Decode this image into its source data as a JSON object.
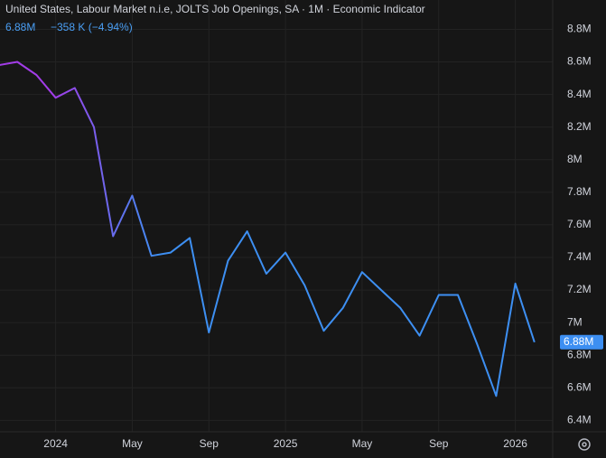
{
  "chart_data": {
    "type": "line",
    "title": "United States, Labour Market n.i.e, JOLTS Job Openings, SA · 1M · Economic Indicator",
    "last_label": "6.88M",
    "change_label": "−358 K (−4.94%)",
    "x": [
      "2023-10",
      "2023-11",
      "2023-12",
      "2024-01",
      "2024-02",
      "2024-03",
      "2024-04",
      "2024-05",
      "2024-06",
      "2024-07",
      "2024-08",
      "2024-09",
      "2024-10",
      "2024-11",
      "2024-12",
      "2025-01",
      "2025-02",
      "2025-03",
      "2025-04",
      "2025-05",
      "2025-06",
      "2025-07",
      "2025-08",
      "2025-09",
      "2025-10",
      "2025-11",
      "2025-12",
      "2026-01",
      "2026-02"
    ],
    "values": [
      8.58,
      8.6,
      8.52,
      8.38,
      8.44,
      8.2,
      7.53,
      7.78,
      7.41,
      7.43,
      7.52,
      6.94,
      7.38,
      7.56,
      7.3,
      7.43,
      7.23,
      6.95,
      7.09,
      7.31,
      7.2,
      7.09,
      6.92,
      7.17,
      7.17,
      6.87,
      6.55,
      7.24,
      6.88
    ],
    "color": [
      "#a23ce8",
      "#3d8ff2"
    ],
    "xlim": [
      "2023-10",
      "2026-03"
    ],
    "xticks": [
      {
        "value": "2024-01",
        "label": "2024"
      },
      {
        "value": "2024-05",
        "label": "May"
      },
      {
        "value": "2024-09",
        "label": "Sep"
      },
      {
        "value": "2025-01",
        "label": "2025"
      },
      {
        "value": "2025-05",
        "label": "May"
      },
      {
        "value": "2025-09",
        "label": "Sep"
      },
      {
        "value": "2026-01",
        "label": "2026"
      }
    ],
    "ylim": [
      6.33,
      8.98
    ],
    "yticks": [
      {
        "value": 6.4,
        "label": "6.4M"
      },
      {
        "value": 6.6,
        "label": "6.6M"
      },
      {
        "value": 6.8,
        "label": "6.8M"
      },
      {
        "value": 7,
        "label": "7M"
      },
      {
        "value": 7.2,
        "label": "7.2M"
      },
      {
        "value": 7.4,
        "label": "7.4M"
      },
      {
        "value": 7.6,
        "label": "7.6M"
      },
      {
        "value": 7.8,
        "label": "7.8M"
      },
      {
        "value": 8,
        "label": "8M"
      },
      {
        "value": 8.2,
        "label": "8.2M"
      },
      {
        "value": 8.4,
        "label": "8.4M"
      },
      {
        "value": 8.6,
        "label": "8.6M"
      },
      {
        "value": 8.8,
        "label": "8.8M"
      }
    ],
    "grid": true
  }
}
